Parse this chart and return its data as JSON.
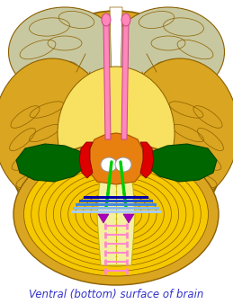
{
  "title": "Ventral (bottom) surface of brain",
  "title_color": "#3333cc",
  "title_fontsize": 8.5,
  "bg_color": "#ffffff",
  "brain_color": "#daa520",
  "brain_edge": "#8B6000",
  "brain_inner": "#f5c800",
  "brain_inner2": "#f8e060",
  "gray_frontal": "#c8c8a0",
  "gray_frontal2": "#b8b890",
  "cerebellum_color": "#daa520",
  "brainstem_color": "#f5f0a0",
  "brainstem_edge": "#c8b400",
  "midbrain_orange": "#e88010",
  "midbrain_edge": "#b05800",
  "dark_green": "#006600",
  "dark_green2": "#004400",
  "red_vessel": "#dd0000",
  "green_nerve": "#00cc00",
  "blue1": "#0000aa",
  "blue2": "#2255cc",
  "blue3": "#4488dd",
  "blue4": "#88bbee",
  "blue5": "#aaccff",
  "pink": "#ff88cc",
  "purple": "#aa00bb",
  "pink_olf": "#ff88bb",
  "white_mamm": "#ffffff",
  "fig_width": 2.59,
  "fig_height": 3.38,
  "dpi": 100
}
